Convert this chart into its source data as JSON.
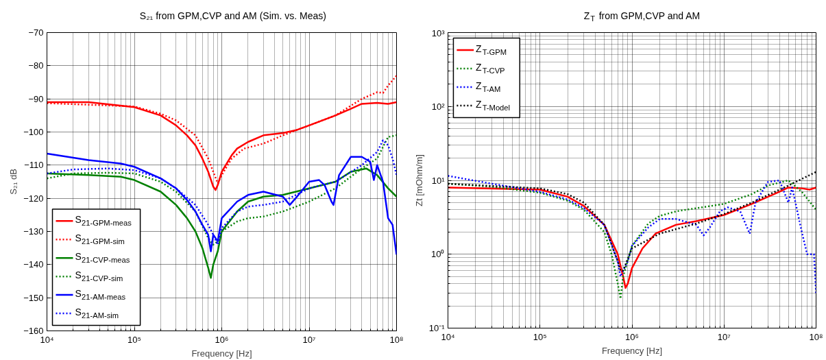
{
  "chart_data": [
    {
      "type": "line",
      "title": "S₂₁ from GPM,CVP and AM (Sim. vs. Meas)",
      "xlabel": "Frequency [Hz]",
      "ylabel": "S₂₁ dB",
      "log": "x",
      "xlim": [
        10000,
        100000000
      ],
      "xticks": [
        {
          "value": 10000,
          "label": "10⁴"
        },
        {
          "value": 100000,
          "label": "10⁵"
        },
        {
          "value": 1000000,
          "label": "10⁶"
        },
        {
          "value": 10000000,
          "label": "10⁷"
        },
        {
          "value": 100000000,
          "label": "10⁸"
        }
      ],
      "ylim": [
        -160,
        -70
      ],
      "yticks": [
        -160,
        -150,
        -140,
        -130,
        -120,
        -110,
        -100,
        -90,
        -80,
        -70
      ],
      "grid": true,
      "legend": "bottom left",
      "series": [
        {
          "name": "S$_{21-GPM-meas}$",
          "color": "#ff0000",
          "line_style": "solid",
          "x": [
            10000,
            30000,
            100000,
            200000,
            300000,
            400000,
            500000,
            600000,
            700000,
            800000,
            850000,
            900000,
            1000000,
            1300000,
            1500000,
            2000000,
            3000000,
            5000000,
            7000000,
            10000000,
            20000000,
            30000000,
            40000000,
            60000000,
            80000000,
            100000000
          ],
          "values": [
            -91,
            -91,
            -92.5,
            -95,
            -98,
            -101,
            -104,
            -108,
            -112,
            -116.5,
            -117.5,
            -116,
            -112,
            -107,
            -105,
            -103,
            -101,
            -100.3,
            -99.5,
            -98,
            -95,
            -93,
            -91.5,
            -91.2,
            -91.5,
            -91
          ]
        },
        {
          "name": "S$_{21-GPM-sim}$",
          "color": "#ff0000",
          "line_style": "dotted",
          "x": [
            10000,
            100000,
            200000,
            300000,
            500000,
            700000,
            800000,
            900000,
            1000000,
            1300000,
            1800000,
            3000000,
            5000000,
            10000000,
            20000000,
            40000000,
            60000000,
            70000000,
            80000000,
            100000000
          ],
          "values": [
            -91.3,
            -92.3,
            -94.5,
            -96.5,
            -101,
            -108,
            -112,
            -115.5,
            -113,
            -108,
            -105,
            -103.5,
            -101,
            -98,
            -95,
            -90,
            -88,
            -88.2,
            -86,
            -83
          ]
        },
        {
          "name": "S$_{21-CVP-meas}$",
          "color": "#008000",
          "line_style": "solid",
          "x": [
            10000,
            30000,
            70000,
            100000,
            200000,
            300000,
            400000,
            500000,
            600000,
            700000,
            750000,
            800000,
            900000,
            1000000,
            1500000,
            2000000,
            3000000,
            5000000,
            10000000,
            20000000,
            30000000,
            45000000,
            60000000,
            80000000,
            100000000
          ],
          "values": [
            -112.5,
            -113,
            -113.5,
            -114.5,
            -118,
            -122,
            -126,
            -130,
            -135,
            -141,
            -144,
            -140,
            -136,
            -130,
            -124,
            -121,
            -119.5,
            -119,
            -117,
            -115,
            -112,
            -111,
            -113,
            -117,
            -119.5
          ]
        },
        {
          "name": "S$_{21-CVP-sim}$",
          "color": "#008000",
          "line_style": "dotted",
          "x": [
            10000,
            20000,
            50000,
            100000,
            200000,
            300000,
            500000,
            700000,
            800000,
            900000,
            1000000,
            1500000,
            2000000,
            3000000,
            5000000,
            10000000,
            20000000,
            40000000,
            60000000,
            80000000,
            100000000
          ],
          "values": [
            -114,
            -112.5,
            -112.3,
            -112.5,
            -115,
            -118,
            -124,
            -132,
            -134,
            -133,
            -130,
            -127,
            -126,
            -125.5,
            -124,
            -121,
            -117,
            -111,
            -108,
            -101.5,
            -101
          ]
        },
        {
          "name": "S$_{21-AM-meas}$",
          "color": "#0000ff",
          "line_style": "solid",
          "x": [
            10000,
            30000,
            70000,
            100000,
            200000,
            300000,
            400000,
            500000,
            600000,
            700000,
            750000,
            800000,
            900000,
            1000000,
            1500000,
            2000000,
            3000000,
            5000000,
            6000000,
            7000000,
            10000000,
            13000000,
            15000000,
            18000000,
            19000000,
            22000000,
            30000000,
            40000000,
            50000000,
            55000000,
            60000000,
            70000000,
            80000000,
            90000000,
            100000000
          ],
          "values": [
            -106.5,
            -108.5,
            -109.5,
            -110.5,
            -114,
            -117,
            -120.5,
            -124,
            -128,
            -131,
            -136,
            -131,
            -133,
            -126,
            -121,
            -119,
            -118,
            -119.5,
            -122,
            -120,
            -115,
            -114.5,
            -116,
            -121,
            -122,
            -113,
            -107.5,
            -107.5,
            -109,
            -114.5,
            -110,
            -115,
            -126,
            -128,
            -137
          ]
        },
        {
          "name": "S$_{21-AM-sim}$",
          "color": "#0000ff",
          "line_style": "dotted",
          "x": [
            10000,
            20000,
            50000,
            100000,
            200000,
            300000,
            500000,
            700000,
            800000,
            900000,
            1000000,
            1500000,
            2000000,
            3000000,
            5000000,
            10000000,
            20000000,
            40000000,
            60000000,
            70000000,
            80000000,
            90000000,
            100000000
          ],
          "values": [
            -112.5,
            -111.3,
            -111,
            -111.5,
            -114,
            -117,
            -122,
            -128,
            -131,
            -134,
            -129,
            -124,
            -122.5,
            -122,
            -121,
            -117,
            -115,
            -110,
            -106,
            -102.5,
            -104,
            -108,
            -113
          ]
        }
      ]
    },
    {
      "type": "line",
      "title": "Z$_{T}$ from GPM,CVP and AM",
      "xlabel": "Frequency [Hz]",
      "ylabel": "Zt [mOhm/m]",
      "log": "xy",
      "xlim": [
        10000,
        100000000
      ],
      "xticks": [
        {
          "value": 10000,
          "label": "10⁴"
        },
        {
          "value": 100000,
          "label": "10⁵"
        },
        {
          "value": 1000000,
          "label": "10⁶"
        },
        {
          "value": 10000000,
          "label": "10⁷"
        },
        {
          "value": 100000000,
          "label": "10⁸"
        }
      ],
      "ylim": [
        0.1,
        1000
      ],
      "yticks": [
        {
          "value": 0.1,
          "label": "10⁻¹"
        },
        {
          "value": 1,
          "label": "10⁰"
        },
        {
          "value": 10,
          "label": "10¹"
        },
        {
          "value": 100,
          "label": "10²"
        },
        {
          "value": 1000,
          "label": "10³"
        }
      ],
      "grid": true,
      "legend": "top left",
      "series": [
        {
          "name": "Z$_{T-GPM}$",
          "color": "#ff0000",
          "line_style": "solid",
          "x": [
            10000,
            100000,
            200000,
            300000,
            500000,
            700000,
            800000,
            850000,
            900000,
            1000000,
            1300000,
            1800000,
            3000000,
            5000000,
            10000000,
            20000000,
            40000000,
            50000000,
            70000000,
            85000000,
            100000000
          ],
          "values": [
            8,
            7.5,
            6,
            4.5,
            2.5,
            1.0,
            0.5,
            0.35,
            0.4,
            0.65,
            1.2,
            1.9,
            2.5,
            2.8,
            3.4,
            4.8,
            7,
            8,
            7.8,
            7.5,
            8
          ]
        },
        {
          "name": "Z$_{T-CVP}$",
          "color": "#008000",
          "line_style": "dotted",
          "x": [
            10000,
            30000,
            100000,
            200000,
            300000,
            500000,
            600000,
            700000,
            750000,
            800000,
            1000000,
            1500000,
            2000000,
            3000000,
            5000000,
            10000000,
            20000000,
            30000000,
            50000000,
            70000000,
            100000000
          ],
          "values": [
            9,
            8.2,
            6.8,
            5.3,
            4,
            2.0,
            1.0,
            0.4,
            0.25,
            0.5,
            1.3,
            2.6,
            3.3,
            3.8,
            4.2,
            4.8,
            6.5,
            8.5,
            10,
            7,
            4
          ]
        },
        {
          "name": "Z$_{T-AM}$",
          "color": "#0000ff",
          "line_style": "dotted",
          "x": [
            10000,
            30000,
            100000,
            200000,
            300000,
            500000,
            700000,
            750000,
            800000,
            900000,
            1000000,
            1500000,
            2000000,
            3000000,
            5000000,
            6000000,
            7000000,
            9000000,
            11000000,
            15000000,
            19000000,
            22000000,
            30000000,
            40000000,
            50000000,
            55000000,
            70000000,
            80000000,
            95000000,
            100000000
          ],
          "values": [
            11.5,
            9,
            7,
            5.5,
            4.2,
            2.5,
            0.8,
            0.5,
            0.6,
            0.8,
            1.3,
            2.3,
            3,
            3,
            2.5,
            1.8,
            2.3,
            3.8,
            4.3,
            3.8,
            1.9,
            5,
            9.5,
            10,
            5,
            8,
            2,
            1,
            1,
            0.3
          ]
        },
        {
          "name": "Z$_{T-Model}$",
          "color": "#000000",
          "line_style": "dotted",
          "x": [
            10000,
            100000,
            200000,
            300000,
            500000,
            700000,
            750000,
            800000,
            1000000,
            2000000,
            5000000,
            10000000,
            20000000,
            50000000,
            100000000
          ],
          "values": [
            9,
            7.8,
            6.5,
            5,
            2.5,
            0.8,
            0.6,
            0.6,
            1.2,
            1.9,
            2.6,
            3.5,
            5,
            8.5,
            13
          ]
        }
      ]
    }
  ]
}
